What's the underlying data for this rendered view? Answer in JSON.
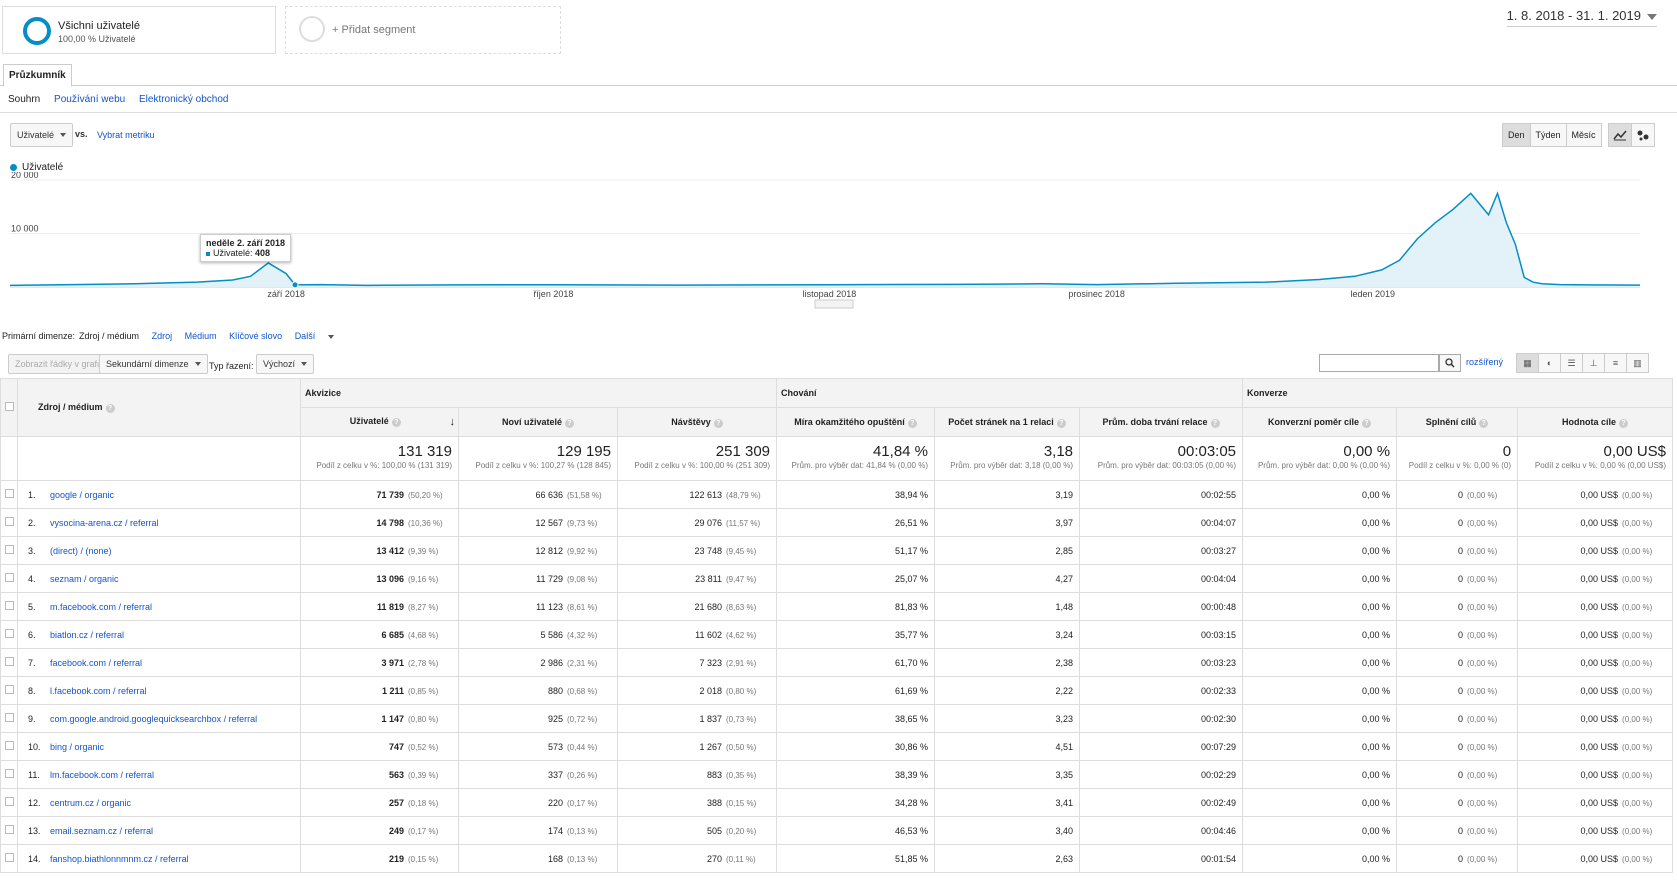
{
  "segments": [
    {
      "title": "Všichni uživatelé",
      "subtitle": "100,00 % Uživatelé"
    },
    {
      "title": "+ Přidat segment",
      "subtitle": ""
    }
  ],
  "daterange": "1. 8. 2018 - 31. 1. 2019",
  "tab": "Průzkumník",
  "subtabs": [
    "Souhrn",
    "Používání webu",
    "Elektronický obchod"
  ],
  "metric_select": "Uživatelé",
  "vs": "vs.",
  "select_metric": "Vybrat metriku",
  "granularity": [
    "Den",
    "Týden",
    "Měsíc"
  ],
  "legend": "Uživatelé",
  "tooltip": {
    "date": "neděle 2. září 2018",
    "label": "Uživatelé:",
    "value": "408"
  },
  "chart_data": {
    "type": "area",
    "series_name": "Uživatelé",
    "y_ticks": [
      "20 000",
      "10 000"
    ],
    "ylim": [
      0,
      20000
    ],
    "x_labels": [
      "září 2018",
      "říjen 2018",
      "listopad 2018",
      "prosinec 2018",
      "leden 2019"
    ],
    "x": [
      "2018-08-01",
      "2018-08-08",
      "2018-08-15",
      "2018-08-22",
      "2018-08-26",
      "2018-08-28",
      "2018-08-30",
      "2018-09-01",
      "2018-09-02",
      "2018-09-05",
      "2018-09-10",
      "2018-09-20",
      "2018-10-01",
      "2018-10-15",
      "2018-11-01",
      "2018-11-15",
      "2018-11-25",
      "2018-12-01",
      "2018-12-10",
      "2018-12-20",
      "2018-12-26",
      "2018-12-30",
      "2019-01-02",
      "2019-01-04",
      "2019-01-06",
      "2019-01-08",
      "2019-01-10",
      "2019-01-12",
      "2019-01-14",
      "2019-01-15",
      "2019-01-16",
      "2019-01-17",
      "2019-01-18",
      "2019-01-19",
      "2019-01-20",
      "2019-01-22",
      "2019-01-25",
      "2019-01-31"
    ],
    "values": [
      300,
      450,
      600,
      900,
      1300,
      2000,
      4500,
      2500,
      408,
      450,
      300,
      400,
      420,
      350,
      420,
      500,
      600,
      450,
      700,
      900,
      1400,
      2000,
      3200,
      5000,
      9000,
      12000,
      14500,
      17500,
      13500,
      17500,
      12000,
      8000,
      1800,
      900,
      600,
      450,
      400,
      350
    ]
  },
  "dimensions": {
    "label": "Primární dimenze:",
    "active": "Zdroj / médium",
    "others": [
      "Zdroj",
      "Médium",
      "Klíčové slovo",
      "Další"
    ]
  },
  "tools": {
    "plot_rows": "Zobrazit řádky v grafu",
    "secondary": "Sekundární dimenze",
    "sort_label": "Typ řazení:",
    "sort_value": "Výchozí",
    "advanced": "rozšířený"
  },
  "table": {
    "group_headers": [
      "Akvizice",
      "Chování",
      "Konverze"
    ],
    "dim_header": "Zdroj / médium",
    "columns": [
      "Uživatelé",
      "Noví uživatelé",
      "Návštěvy",
      "Míra okamžitého opuštění",
      "Počet stránek na 1 relaci",
      "Prům. doba trvání relace",
      "Konverzní poměr cíle",
      "Splnění cílů",
      "Hodnota cíle"
    ],
    "totals": [
      {
        "v": "131 319",
        "s": "Podíl z celku v %: 100,00 % (131 319)"
      },
      {
        "v": "129 195",
        "s": "Podíl z celku v %: 100,27 % (128 845)"
      },
      {
        "v": "251 309",
        "s": "Podíl z celku v %: 100,00 % (251 309)"
      },
      {
        "v": "41,84 %",
        "s": "Prům. pro výběr dat: 41,84 % (0,00 %)"
      },
      {
        "v": "3,18",
        "s": "Prům. pro výběr dat: 3,18 (0,00 %)"
      },
      {
        "v": "00:03:05",
        "s": "Prům. pro výběr dat: 00:03:05 (0,00 %)"
      },
      {
        "v": "0,00 %",
        "s": "Prům. pro výběr dat: 0,00 % (0,00 %)"
      },
      {
        "v": "0",
        "s": "Podíl z celku v %: 0,00 % (0)"
      },
      {
        "v": "0,00 US$",
        "s": "Podíl z celku v %: 0,00 % (0,00 US$)"
      }
    ],
    "rows": [
      {
        "n": "1.",
        "src": "google / organic",
        "u": "71 739",
        "up": "(50,20 %)",
        "nu": "66 636",
        "nup": "(51,58 %)",
        "s": "122 613",
        "sp": "(48,79 %)",
        "b": "38,94 %",
        "p": "3,19",
        "d": "00:02:55",
        "cr": "0,00 %",
        "g": "0",
        "gp": "(0,00 %)",
        "v": "0,00 US$",
        "vp": "(0,00 %)"
      },
      {
        "n": "2.",
        "src": "vysocina-arena.cz / referral",
        "u": "14 798",
        "up": "(10,36 %)",
        "nu": "12 567",
        "nup": "(9,73 %)",
        "s": "29 076",
        "sp": "(11,57 %)",
        "b": "26,51 %",
        "p": "3,97",
        "d": "00:04:07",
        "cr": "0,00 %",
        "g": "0",
        "gp": "(0,00 %)",
        "v": "0,00 US$",
        "vp": "(0,00 %)"
      },
      {
        "n": "3.",
        "src": "(direct) / (none)",
        "u": "13 412",
        "up": "(9,39 %)",
        "nu": "12 812",
        "nup": "(9,92 %)",
        "s": "23 748",
        "sp": "(9,45 %)",
        "b": "51,17 %",
        "p": "2,85",
        "d": "00:03:27",
        "cr": "0,00 %",
        "g": "0",
        "gp": "(0,00 %)",
        "v": "0,00 US$",
        "vp": "(0,00 %)"
      },
      {
        "n": "4.",
        "src": "seznam / organic",
        "u": "13 096",
        "up": "(9,16 %)",
        "nu": "11 729",
        "nup": "(9,08 %)",
        "s": "23 811",
        "sp": "(9,47 %)",
        "b": "25,07 %",
        "p": "4,27",
        "d": "00:04:04",
        "cr": "0,00 %",
        "g": "0",
        "gp": "(0,00 %)",
        "v": "0,00 US$",
        "vp": "(0,00 %)"
      },
      {
        "n": "5.",
        "src": "m.facebook.com / referral",
        "u": "11 819",
        "up": "(8,27 %)",
        "nu": "11 123",
        "nup": "(8,61 %)",
        "s": "21 680",
        "sp": "(8,63 %)",
        "b": "81,83 %",
        "p": "1,48",
        "d": "00:00:48",
        "cr": "0,00 %",
        "g": "0",
        "gp": "(0,00 %)",
        "v": "0,00 US$",
        "vp": "(0,00 %)"
      },
      {
        "n": "6.",
        "src": "biatlon.cz / referral",
        "u": "6 685",
        "up": "(4,68 %)",
        "nu": "5 586",
        "nup": "(4,32 %)",
        "s": "11 602",
        "sp": "(4,62 %)",
        "b": "35,77 %",
        "p": "3,24",
        "d": "00:03:15",
        "cr": "0,00 %",
        "g": "0",
        "gp": "(0,00 %)",
        "v": "0,00 US$",
        "vp": "(0,00 %)"
      },
      {
        "n": "7.",
        "src": "facebook.com / referral",
        "u": "3 971",
        "up": "(2,78 %)",
        "nu": "2 986",
        "nup": "(2,31 %)",
        "s": "7 323",
        "sp": "(2,91 %)",
        "b": "61,70 %",
        "p": "2,38",
        "d": "00:03:23",
        "cr": "0,00 %",
        "g": "0",
        "gp": "(0,00 %)",
        "v": "0,00 US$",
        "vp": "(0,00 %)"
      },
      {
        "n": "8.",
        "src": "l.facebook.com / referral",
        "u": "1 211",
        "up": "(0,85 %)",
        "nu": "880",
        "nup": "(0,68 %)",
        "s": "2 018",
        "sp": "(0,80 %)",
        "b": "61,69 %",
        "p": "2,22",
        "d": "00:02:33",
        "cr": "0,00 %",
        "g": "0",
        "gp": "(0,00 %)",
        "v": "0,00 US$",
        "vp": "(0,00 %)"
      },
      {
        "n": "9.",
        "src": "com.google.android.googlequicksearchbox / referral",
        "u": "1 147",
        "up": "(0,80 %)",
        "nu": "925",
        "nup": "(0,72 %)",
        "s": "1 837",
        "sp": "(0,73 %)",
        "b": "38,65 %",
        "p": "3,23",
        "d": "00:02:30",
        "cr": "0,00 %",
        "g": "0",
        "gp": "(0,00 %)",
        "v": "0,00 US$",
        "vp": "(0,00 %)"
      },
      {
        "n": "10.",
        "src": "bing / organic",
        "u": "747",
        "up": "(0,52 %)",
        "nu": "573",
        "nup": "(0,44 %)",
        "s": "1 267",
        "sp": "(0,50 %)",
        "b": "30,86 %",
        "p": "4,51",
        "d": "00:07:29",
        "cr": "0,00 %",
        "g": "0",
        "gp": "(0,00 %)",
        "v": "0,00 US$",
        "vp": "(0,00 %)"
      },
      {
        "n": "11.",
        "src": "lm.facebook.com / referral",
        "u": "563",
        "up": "(0,39 %)",
        "nu": "337",
        "nup": "(0,26 %)",
        "s": "883",
        "sp": "(0,35 %)",
        "b": "38,39 %",
        "p": "3,35",
        "d": "00:02:29",
        "cr": "0,00 %",
        "g": "0",
        "gp": "(0,00 %)",
        "v": "0,00 US$",
        "vp": "(0,00 %)"
      },
      {
        "n": "12.",
        "src": "centrum.cz / organic",
        "u": "257",
        "up": "(0,18 %)",
        "nu": "220",
        "nup": "(0,17 %)",
        "s": "388",
        "sp": "(0,15 %)",
        "b": "34,28 %",
        "p": "3,41",
        "d": "00:02:49",
        "cr": "0,00 %",
        "g": "0",
        "gp": "(0,00 %)",
        "v": "0,00 US$",
        "vp": "(0,00 %)"
      },
      {
        "n": "13.",
        "src": "email.seznam.cz / referral",
        "u": "249",
        "up": "(0,17 %)",
        "nu": "174",
        "nup": "(0,13 %)",
        "s": "505",
        "sp": "(0,20 %)",
        "b": "46,53 %",
        "p": "3,40",
        "d": "00:04:46",
        "cr": "0,00 %",
        "g": "0",
        "gp": "(0,00 %)",
        "v": "0,00 US$",
        "vp": "(0,00 %)"
      },
      {
        "n": "14.",
        "src": "fanshop.biathlonnmnm.cz / referral",
        "u": "219",
        "up": "(0,15 %)",
        "nu": "168",
        "nup": "(0,13 %)",
        "s": "270",
        "sp": "(0,11 %)",
        "b": "51,85 %",
        "p": "2,63",
        "d": "00:01:54",
        "cr": "0,00 %",
        "g": "0",
        "gp": "(0,00 %)",
        "v": "0,00 US$",
        "vp": "(0,00 %)"
      }
    ]
  }
}
